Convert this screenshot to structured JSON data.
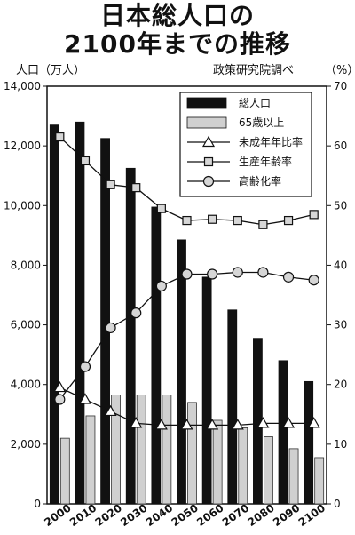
{
  "chart_data": {
    "type": "bar",
    "title": [
      "日本総人口の",
      "2100年までの推移"
    ],
    "ylabel": "人口（万人）",
    "y2label": "（%）",
    "source": "政策研究院調べ",
    "ylim": [
      0,
      14000
    ],
    "y2lim": [
      0,
      70
    ],
    "yticks": [
      "0",
      "2,000",
      "4,000",
      "6,000",
      "8,000",
      "10,000",
      "12,000",
      "14,000"
    ],
    "y2ticks": [
      "0",
      "10",
      "20",
      "30",
      "40",
      "50",
      "60",
      "70"
    ],
    "categories": [
      "2000",
      "2010",
      "2020",
      "2030",
      "2040",
      "2050",
      "2060",
      "2070",
      "2080",
      "2090",
      "2100"
    ],
    "legend_position": "top-right",
    "bar_series": [
      {
        "name": "総人口",
        "color": "#111111",
        "values": [
          12700,
          12800,
          12250,
          11250,
          9950,
          8850,
          7600,
          6500,
          5550,
          4800,
          4100
        ]
      },
      {
        "name": "65歳以上",
        "color": "#d0d0d0",
        "values": [
          2200,
          2950,
          3650,
          3650,
          3650,
          3400,
          2800,
          2550,
          2250,
          1850,
          1550
        ]
      }
    ],
    "line_series": [
      {
        "name": "未成年年比率",
        "marker": "triangle",
        "axis": "right",
        "values": [
          19.5,
          17.5,
          15.5,
          13.5,
          13.2,
          13.2,
          13.2,
          13.2,
          13.5,
          13.5,
          13.5
        ]
      },
      {
        "name": "生産年齢率",
        "marker": "square",
        "axis": "right",
        "values": [
          61.5,
          57.5,
          53.5,
          53.0,
          49.5,
          47.5,
          47.7,
          47.5,
          46.8,
          47.5,
          48.5
        ]
      },
      {
        "name": "高齢化率",
        "marker": "circle",
        "axis": "right",
        "values": [
          17.5,
          23.0,
          29.5,
          32.0,
          36.5,
          38.5,
          38.5,
          38.8,
          38.8,
          38.0,
          37.5
        ]
      }
    ]
  }
}
